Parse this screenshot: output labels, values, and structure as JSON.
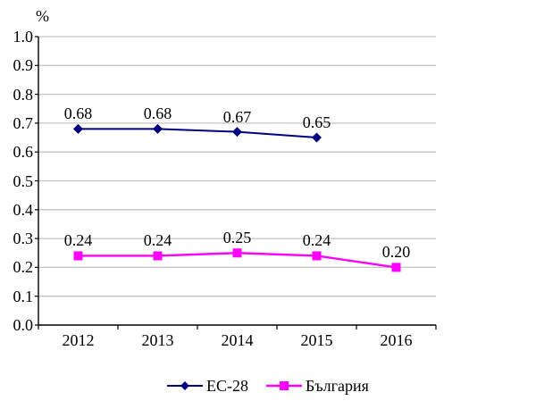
{
  "chart_data": {
    "type": "line",
    "title": "",
    "xlabel": "",
    "ylabel": "%",
    "x": [
      "2012",
      "2013",
      "2014",
      "2015",
      "2016"
    ],
    "ylim": [
      0.0,
      1.0
    ],
    "yticks": [
      "0.0",
      "0.1",
      "0.2",
      "0.3",
      "0.4",
      "0.5",
      "0.6",
      "0.7",
      "0.8",
      "0.9",
      "1.0"
    ],
    "grid": true,
    "legend_position": "bottom",
    "series": [
      {
        "name": "ЕС-28",
        "color": "#000080",
        "marker": "diamond",
        "values": [
          0.68,
          0.68,
          0.67,
          0.65,
          null
        ],
        "labels": [
          "0.68",
          "0.68",
          "0.67",
          "0.65",
          ""
        ]
      },
      {
        "name": "България",
        "color": "#FF00FF",
        "marker": "square",
        "values": [
          0.24,
          0.24,
          0.25,
          0.24,
          0.2
        ],
        "labels": [
          "0.24",
          "0.24",
          "0.25",
          "0.24",
          "0.20"
        ]
      }
    ]
  },
  "colors": {
    "background": "#FFFFFF",
    "gridline": "#C4C4C4",
    "axis": "#000000",
    "text": "#000000"
  }
}
